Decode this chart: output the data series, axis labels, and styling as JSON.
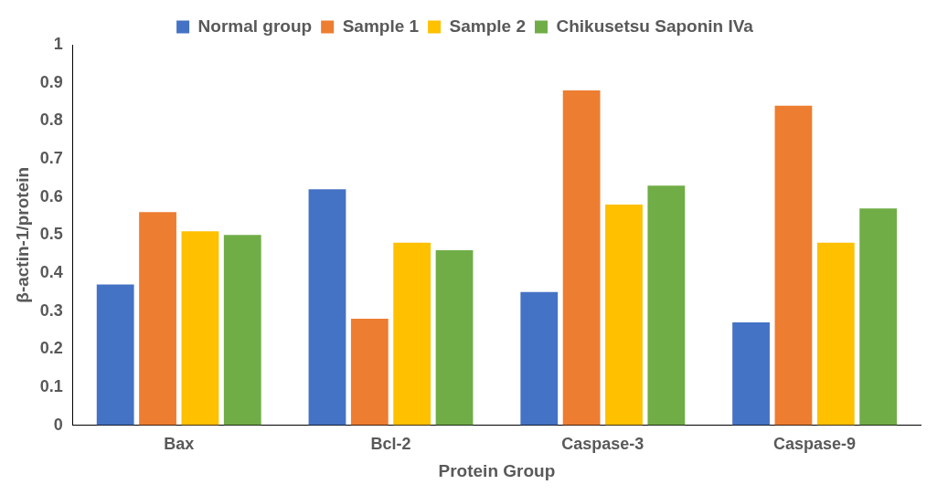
{
  "chart_data": {
    "type": "bar",
    "xlabel": "Protein Group",
    "ylabel": "β-actin-1/protein",
    "categories": [
      "Bax",
      "Bcl-2",
      "Caspase-3",
      "Caspase-9"
    ],
    "series": [
      {
        "name": "Normal group",
        "color": "#4472c4",
        "values": [
          0.37,
          0.62,
          0.35,
          0.27
        ]
      },
      {
        "name": "Sample 1",
        "color": "#ed7d31",
        "values": [
          0.56,
          0.28,
          0.88,
          0.84
        ]
      },
      {
        "name": "Sample 2",
        "color": "#ffc000",
        "values": [
          0.51,
          0.48,
          0.58,
          0.48
        ]
      },
      {
        "name": "Chikusetsu Saponin IVa",
        "color": "#70ad47",
        "values": [
          0.5,
          0.46,
          0.63,
          0.57
        ]
      }
    ],
    "ylim": [
      0,
      1
    ],
    "yticks": [
      0,
      0.1,
      0.2,
      0.3,
      0.4,
      0.5,
      0.6,
      0.7,
      0.8,
      0.9,
      1
    ],
    "grid": false,
    "legend": "top"
  }
}
